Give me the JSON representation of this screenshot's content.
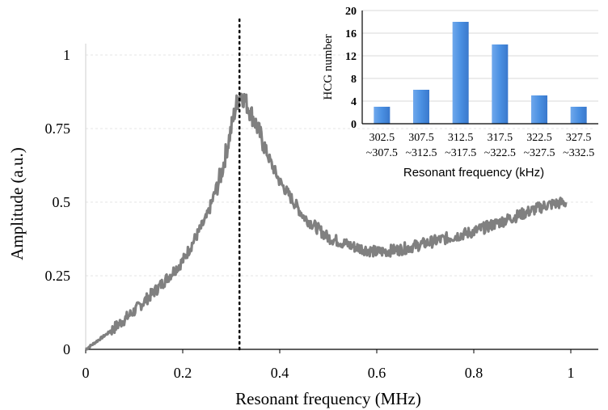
{
  "chart_data": [
    {
      "type": "line",
      "xlabel": "Resonant frequency (MHz)",
      "ylabel": "Amplitude (a.u.)",
      "xlim": [
        0,
        1
      ],
      "ylim": [
        0,
        1
      ],
      "xticks": [
        "0",
        "0.2",
        "0.4",
        "0.6",
        "0.8",
        "1"
      ],
      "yticks": [
        "0",
        "0.25",
        "0.5",
        "0.75",
        "1"
      ],
      "grid": "horizontal dashed",
      "series_color": "#808080",
      "marker_line": {
        "x": 0.317,
        "style": "dotted",
        "color": "#000000"
      },
      "series": [
        {
          "x": [
            0,
            0.05,
            0.1,
            0.15,
            0.2,
            0.25,
            0.28,
            0.3,
            0.31,
            0.32,
            0.33,
            0.35,
            0.38,
            0.4,
            0.45,
            0.5,
            0.55,
            0.6,
            0.65,
            0.7,
            0.75,
            0.8,
            0.85,
            0.9,
            0.95,
            0.99
          ],
          "y": [
            0.0,
            0.06,
            0.13,
            0.21,
            0.3,
            0.45,
            0.6,
            0.75,
            0.83,
            0.87,
            0.84,
            0.77,
            0.64,
            0.57,
            0.45,
            0.38,
            0.35,
            0.33,
            0.34,
            0.36,
            0.38,
            0.4,
            0.43,
            0.46,
            0.49,
            0.5
          ]
        }
      ]
    },
    {
      "type": "bar",
      "xlabel": "Resonant frequency (kHz)",
      "ylabel": "HCG number",
      "ylim": [
        0,
        20
      ],
      "yticks": [
        "0",
        "4",
        "8",
        "12",
        "16",
        "20"
      ],
      "grid": "horizontal",
      "bar_color": "#4A90E2",
      "categories": [
        [
          "302.5",
          "~307.5"
        ],
        [
          "307.5",
          "~312.5"
        ],
        [
          "312.5",
          "~317.5"
        ],
        [
          "317.5",
          "~322.5"
        ],
        [
          "322.5",
          "~327.5"
        ],
        [
          "327.5",
          "~332.5"
        ]
      ],
      "values": [
        3,
        6,
        18,
        14,
        5,
        3
      ]
    }
  ]
}
